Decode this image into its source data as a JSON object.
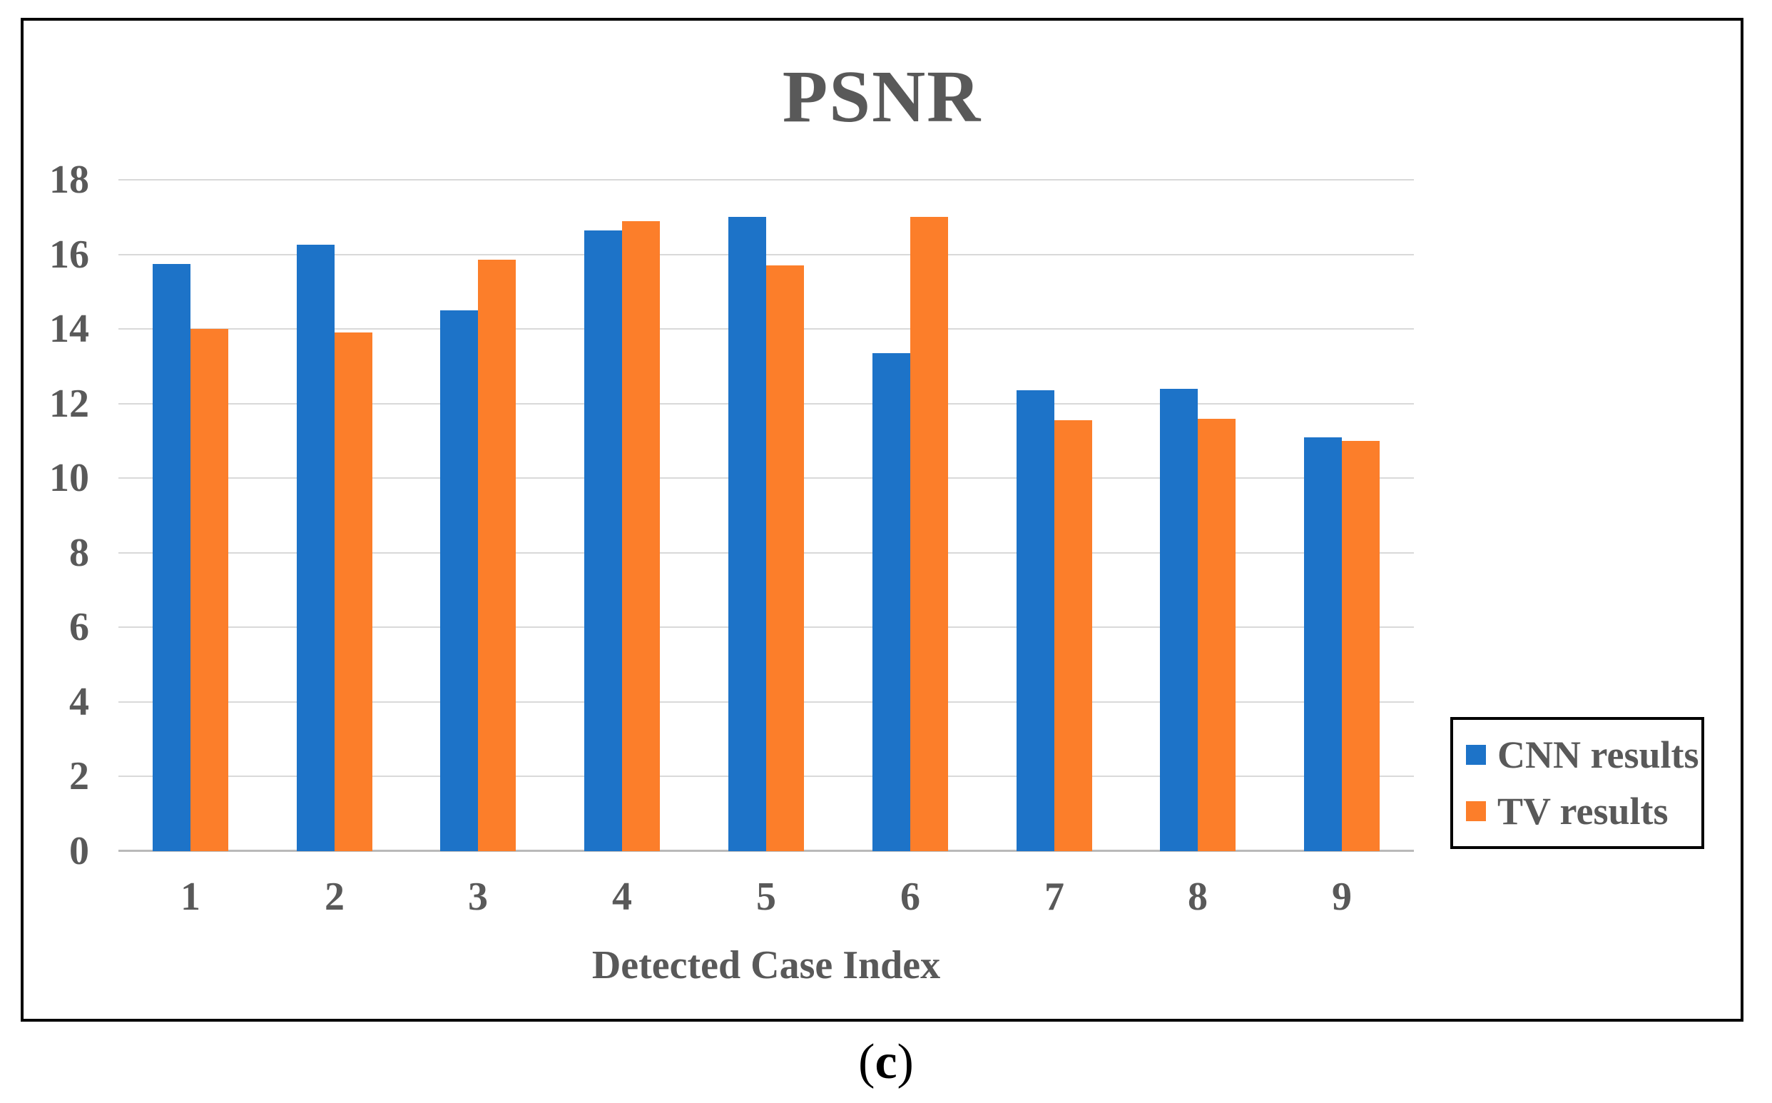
{
  "figure": {
    "caption_open": "(",
    "caption_letter": "c",
    "caption_close": ")"
  },
  "chart_data": {
    "type": "bar",
    "title": "PSNR",
    "xlabel": "Detected Case Index",
    "ylabel": "",
    "categories": [
      "1",
      "2",
      "3",
      "4",
      "5",
      "6",
      "7",
      "8",
      "9"
    ],
    "series": [
      {
        "name": "CNN results",
        "color": "#1D73C8",
        "values": [
          15.75,
          16.25,
          14.5,
          16.65,
          17.0,
          13.35,
          12.35,
          12.4,
          11.1
        ]
      },
      {
        "name": "TV results",
        "color": "#FC7E2A",
        "values": [
          14.0,
          13.9,
          15.85,
          16.9,
          15.7,
          17.0,
          11.55,
          11.6,
          11.0
        ]
      }
    ],
    "ylim": [
      0,
      18
    ],
    "yticks": [
      0,
      2,
      4,
      6,
      8,
      10,
      12,
      14,
      16,
      18
    ],
    "grid": true,
    "legend_position": "inside-bottom-right",
    "colors": {
      "text": "#595959",
      "gridline": "#d9d9d9",
      "axis_baseline": "#b9b9b9",
      "frame_border": "#000000",
      "background": "#ffffff"
    }
  }
}
